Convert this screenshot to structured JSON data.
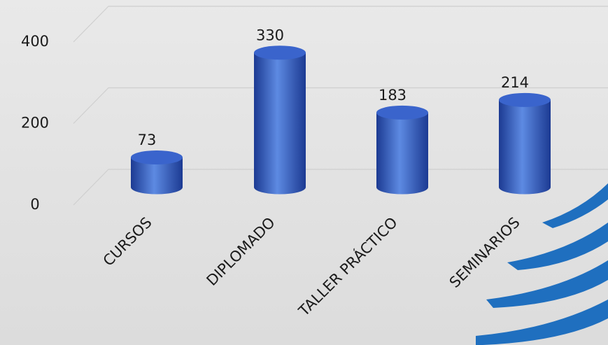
{
  "chart_data": {
    "type": "bar",
    "categories": [
      "CURSOS",
      "DIPLOMADO",
      "TALLER PRÁCTICO",
      "SEMINARIOS"
    ],
    "values": [
      73,
      330,
      183,
      214
    ],
    "color": "#3a64cc",
    "ylim": [
      0,
      400
    ],
    "yticks": [
      0,
      200,
      400
    ],
    "grid": true
  }
}
